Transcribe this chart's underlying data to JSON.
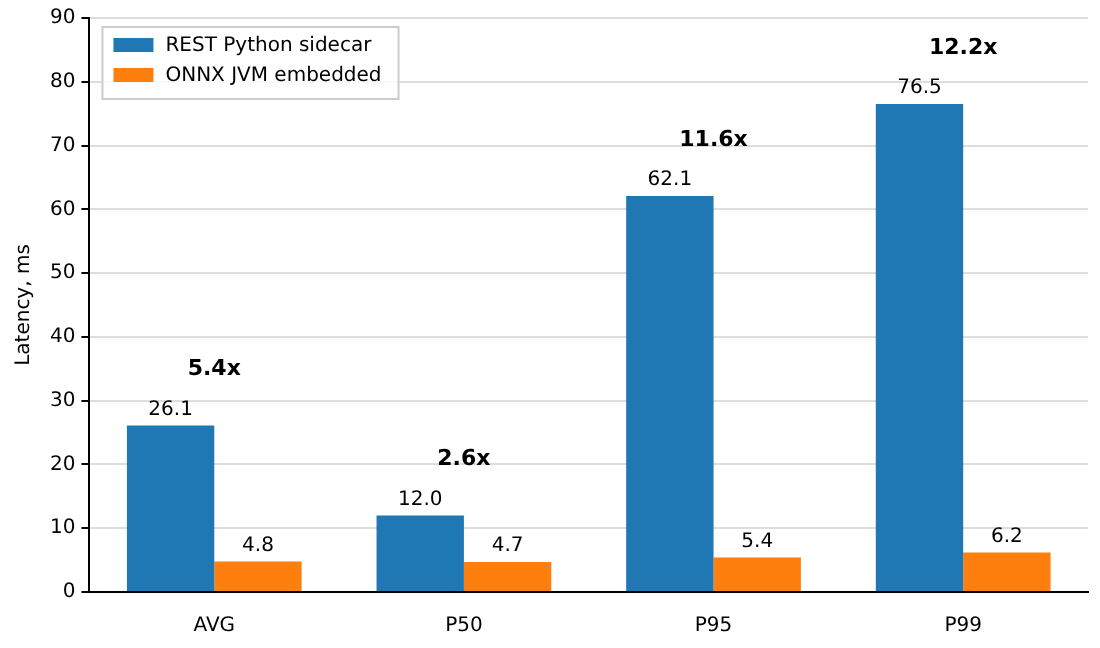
{
  "chart_data": {
    "type": "bar",
    "ylabel": "Latency, ms",
    "categories": [
      "AVG",
      "P50",
      "P95",
      "P99"
    ],
    "series": [
      {
        "name": "REST Python sidecar",
        "color": "#1f77b4",
        "values": [
          26.1,
          12.0,
          62.1,
          76.5
        ],
        "value_labels": [
          "26.1",
          "12.0",
          "62.1",
          "76.5"
        ]
      },
      {
        "name": "ONNX JVM embedded",
        "color": "#ff7f0e",
        "values": [
          4.8,
          4.7,
          5.4,
          6.2
        ],
        "value_labels": [
          "4.8",
          "4.7",
          "5.4",
          "6.2"
        ]
      }
    ],
    "ylim": [
      0,
      90
    ],
    "yticks": [
      0,
      10,
      20,
      30,
      40,
      50,
      60,
      70,
      80,
      90
    ],
    "grid": "y",
    "legend": "top left",
    "annotations": [
      "5.4x",
      "2.6x",
      "11.6x",
      "12.2x"
    ]
  }
}
